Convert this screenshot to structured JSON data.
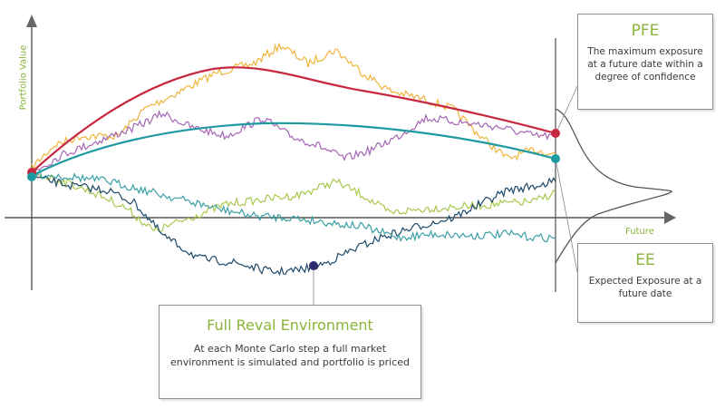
{
  "axes": {
    "y_label": "Portfolio Value",
    "x_label": "Future"
  },
  "pfe": {
    "title": "PFE",
    "description": "The maximum exposure at a future date within a degree of confidence"
  },
  "ee": {
    "title": "EE",
    "description": "Expected Exposure at a future date"
  },
  "reval": {
    "title": "Full Reval Environment",
    "description": "At each Monte Carlo step a full market environment is simulated and portfolio is priced"
  },
  "colors": {
    "pfe_curve": "#c8283f",
    "ee_curve": "#1e9aa2",
    "path_orange": "#f0b43c",
    "path_purple": "#a466b4",
    "path_lightgreen": "#a8c84e",
    "path_navy": "#1f4a6a",
    "path_teal": "#3aa0a6",
    "axis": "#555555",
    "label_green": "#8ab43a"
  }
}
